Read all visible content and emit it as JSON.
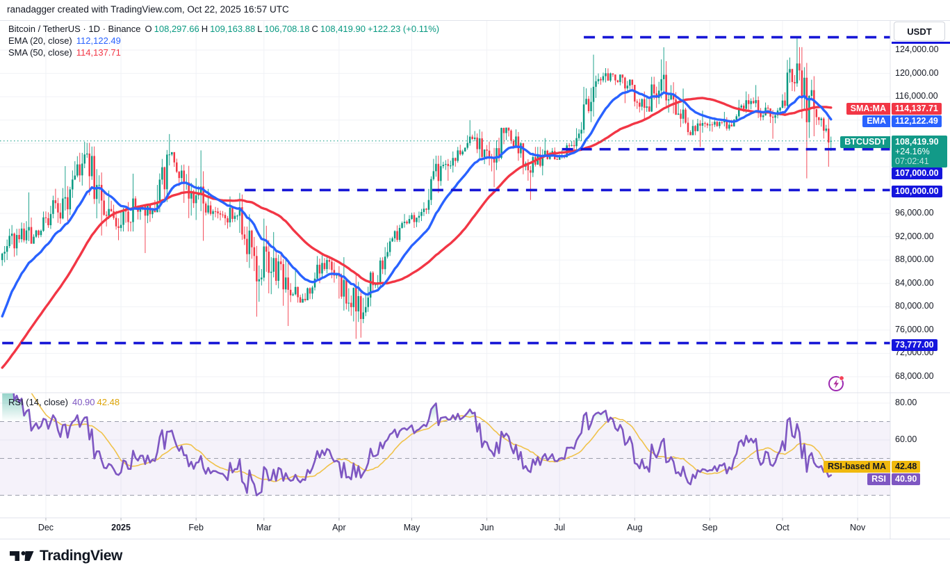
{
  "header": {
    "watermark": "ranadagger created with TradingView.com, Oct 22, 2025 16:57 UTC"
  },
  "legend": {
    "symbol_title": "Bitcoin / TetherUS · 1D · Binance",
    "ohlc": {
      "o_label": "O",
      "o": "108,297.66",
      "h_label": "H",
      "h": "109,163.88",
      "l_label": "L",
      "l": "106,708.18",
      "c_label": "C",
      "c": "108,419.90",
      "change": "+122.23 (+0.11%)"
    },
    "ema_label": "EMA (20, close)",
    "ema_value": "112,122.49",
    "sma_label": "SMA (50, close)",
    "sma_value": "114,137.71",
    "rsi_label": "RSI (14, close)",
    "rsi_value": "40.90",
    "rsi_ma_value": "42.48"
  },
  "price_axis": {
    "currency": "USDT",
    "ticks": [
      {
        "v": 124000,
        "label": "124,000.00"
      },
      {
        "v": 120000,
        "label": "120,000.00"
      },
      {
        "v": 116000,
        "label": "116,000.00"
      },
      {
        "v": 96000,
        "label": "96,000.00"
      },
      {
        "v": 92000,
        "label": "92,000.00"
      },
      {
        "v": 88000,
        "label": "88,000.00"
      },
      {
        "v": 84000,
        "label": "84,000.00"
      },
      {
        "v": 80000,
        "label": "80,000.00"
      },
      {
        "v": 76000,
        "label": "76,000.00"
      },
      {
        "v": 72000,
        "label": "72,000.00"
      },
      {
        "v": 68000,
        "label": "68,000.00"
      }
    ],
    "badges": {
      "sma": {
        "pill": "SMA:MA",
        "value": "114,137.71"
      },
      "ema": {
        "pill": "EMA",
        "value": "112,122.49"
      },
      "symbol": {
        "pill": "BTCUSDT",
        "price": "108,419.90",
        "change_pct": "+24.16%",
        "countdown": "07:02:41"
      },
      "level_107000": "107,000.00",
      "level_100000": "100,000.00",
      "level_73777": "73,777.00"
    }
  },
  "rsi_axis": {
    "ticks": [
      {
        "v": 80,
        "label": "80.00"
      },
      {
        "v": 60,
        "label": "60.00"
      }
    ],
    "badges": {
      "ma_pill": "RSI-based MA",
      "ma_value": "42.48",
      "rsi_pill": "RSI",
      "rsi_value": "40.90"
    }
  },
  "time_axis": {
    "months": [
      {
        "label": "Dec",
        "day": 18
      },
      {
        "label": "2025",
        "day": 49,
        "bold": true
      },
      {
        "label": "Feb",
        "day": 80
      },
      {
        "label": "Mar",
        "day": 108
      },
      {
        "label": "Apr",
        "day": 139
      },
      {
        "label": "May",
        "day": 169
      },
      {
        "label": "Jun",
        "day": 200
      },
      {
        "label": "Jul",
        "day": 230
      },
      {
        "label": "Aug",
        "day": 261
      },
      {
        "label": "Sep",
        "day": 292
      },
      {
        "label": "Oct",
        "day": 322
      },
      {
        "label": "Nov",
        "day": 353
      }
    ]
  },
  "footer": {
    "brand": "TradingView"
  },
  "colors": {
    "up": "#089981",
    "down": "#f23645",
    "ema": "#2962ff",
    "sma": "#f23645",
    "level_blue": "#1717d6",
    "rsi": "#7e57c2",
    "rsi_ma": "#f0c24a",
    "band_fill": "rgba(126,87,194,0.08)",
    "grid": "#f0f2f6",
    "separator": "#e0e3eb",
    "badge_navy": "#1515dd",
    "badge_teal": "#129a88",
    "badge_gold": "#f0b90e"
  },
  "chart_data": {
    "type": "candlestick",
    "symbol": "Bitcoin / TetherUS (BTCUSDT)",
    "exchange": "Binance",
    "interval": "1D",
    "ylim": [
      66500,
      127500
    ],
    "x_range": "mid-Nov 2024 to Oct 22 2025, daily candles",
    "last_candle": {
      "o": 108297.66,
      "h": 109163.88,
      "l": 106708.18,
      "c": 108419.9
    },
    "indicators": {
      "ema20_last": 112122.49,
      "sma50_last": 114137.71,
      "rsi14_last": 40.9,
      "rsi_ma14_last": 42.48
    },
    "current_price_line": 108419.9,
    "levels": [
      {
        "price": 126200,
        "start_day": 240
      },
      {
        "price": 107000,
        "start_day": 231
      },
      {
        "price": 100000,
        "start_day": 100
      },
      {
        "price": 73777,
        "start_day": 0
      }
    ],
    "rsi_band": {
      "overbought": 70,
      "middle": 50,
      "oversold": 30
    },
    "prehistory_weekly_closes": [
      63500,
      65800,
      62100,
      62500,
      68400,
      66600,
      69500,
      76500,
      88000
    ],
    "weekly_candles_format": "[high, low, close] ; open = previous close ; 7 daily candles per week",
    "weekly_candles": [
      [
        94000,
        87000,
        92300
      ],
      [
        99600,
        90800,
        92000
      ],
      [
        97300,
        91800,
        95900
      ],
      [
        104100,
        94200,
        96700
      ],
      [
        108300,
        95700,
        106100
      ],
      [
        108100,
        92200,
        98200
      ],
      [
        99900,
        91400,
        93500
      ],
      [
        102800,
        92900,
        96900
      ],
      [
        97400,
        89200,
        96500
      ],
      [
        109600,
        96200,
        106100
      ],
      [
        106500,
        97800,
        101300
      ],
      [
        106800,
        91300,
        97700
      ],
      [
        100200,
        94800,
        95800
      ],
      [
        98900,
        93400,
        95600
      ],
      [
        99500,
        86100,
        88700
      ],
      [
        95100,
        78300,
        86000
      ],
      [
        92800,
        76700,
        82900
      ],
      [
        86500,
        80700,
        81100
      ],
      [
        88800,
        81300,
        87500
      ],
      [
        88500,
        81400,
        85200
      ],
      [
        88500,
        74500,
        79200
      ],
      [
        86100,
        74700,
        83700
      ],
      [
        91800,
        83200,
        91200
      ],
      [
        95900,
        91100,
        94300
      ],
      [
        97900,
        93500,
        96800
      ],
      [
        105900,
        95900,
        104100
      ],
      [
        107400,
        101600,
        106800
      ],
      [
        111980,
        105900,
        109000
      ],
      [
        110400,
        103200,
        105400
      ],
      [
        110700,
        100500,
        110200
      ],
      [
        110400,
        102700,
        104600
      ],
      [
        107400,
        98300,
        106000
      ],
      [
        108900,
        105200,
        105700
      ],
      [
        110600,
        105400,
        108900
      ],
      [
        123218,
        108400,
        117700
      ],
      [
        120900,
        115800,
        120000
      ],
      [
        119800,
        114900,
        117900
      ],
      [
        119000,
        112100,
        114100
      ],
      [
        122400,
        113400,
        119000
      ],
      [
        124474,
        112900,
        113100
      ],
      [
        117400,
        109400,
        110100
      ],
      [
        113600,
        107400,
        111200
      ],
      [
        113400,
        110200,
        111200
      ],
      [
        116900,
        110900,
        115400
      ],
      [
        118000,
        111900,
        112800
      ],
      [
        115000,
        108800,
        114100
      ],
      [
        126199,
        114000,
        121700
      ],
      [
        124500,
        102000,
        113900
      ],
      [
        112500,
        104000,
        108419.9
      ]
    ]
  }
}
